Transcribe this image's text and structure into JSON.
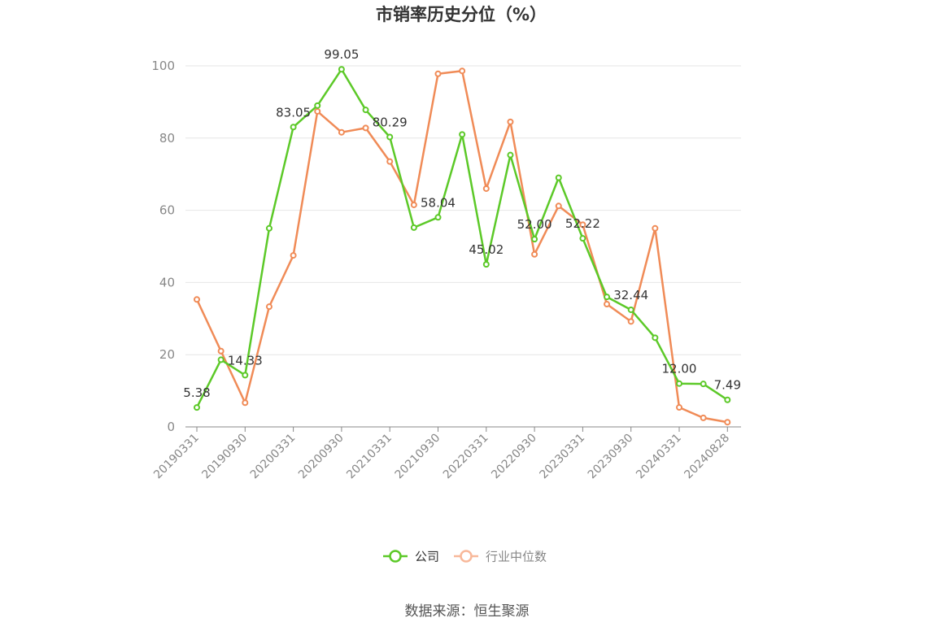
{
  "chart_data": {
    "type": "line",
    "title": "市销率历史分位（%）",
    "ylim": [
      0,
      100
    ],
    "yticks": [
      0,
      20,
      40,
      60,
      80,
      100
    ],
    "x": [
      "20190331",
      "20190630",
      "20190930",
      "20191231",
      "20200331",
      "20200630",
      "20200930",
      "20201231",
      "20210331",
      "20210630",
      "20210930",
      "20211231",
      "20220331",
      "20220630",
      "20220930",
      "20221231",
      "20230331",
      "20230630",
      "20230930",
      "20231231",
      "20240331",
      "20240630",
      "20240828"
    ],
    "xtick_labels": [
      "20190331",
      "20190930",
      "20200331",
      "20200930",
      "20210331",
      "20210930",
      "20220331",
      "20220930",
      "20230331",
      "20230930",
      "20240331",
      "20240828"
    ],
    "grid": true,
    "legend_position": "bottom",
    "series": [
      {
        "name": "公司",
        "color": "#5cc928",
        "values": [
          5.38,
          18.6,
          14.33,
          55.0,
          83.05,
          89.0,
          99.05,
          87.8,
          80.29,
          55.2,
          58.04,
          81.0,
          45.02,
          75.3,
          52.0,
          69.0,
          52.22,
          36.0,
          32.44,
          24.7,
          12.0,
          11.9,
          7.49
        ],
        "labels": [
          "5.38",
          "",
          "14.33",
          "",
          "83.05",
          "",
          "99.05",
          "",
          "80.29",
          "",
          "58.04",
          "",
          "45.02",
          "",
          "52.00",
          "",
          "52.22",
          "",
          "32.44",
          "",
          "12.00",
          "",
          "7.49"
        ]
      },
      {
        "name": "行业中位数",
        "color": "#f08b57",
        "values": [
          35.3,
          21.0,
          6.7,
          33.3,
          47.5,
          87.4,
          81.6,
          82.8,
          73.5,
          61.5,
          97.8,
          98.6,
          66.0,
          84.5,
          47.8,
          61.2,
          56.0,
          34.0,
          29.2,
          55.0,
          5.4,
          2.5,
          1.3
        ]
      }
    ]
  },
  "footer": {
    "source": "数据来源：恒生聚源"
  }
}
